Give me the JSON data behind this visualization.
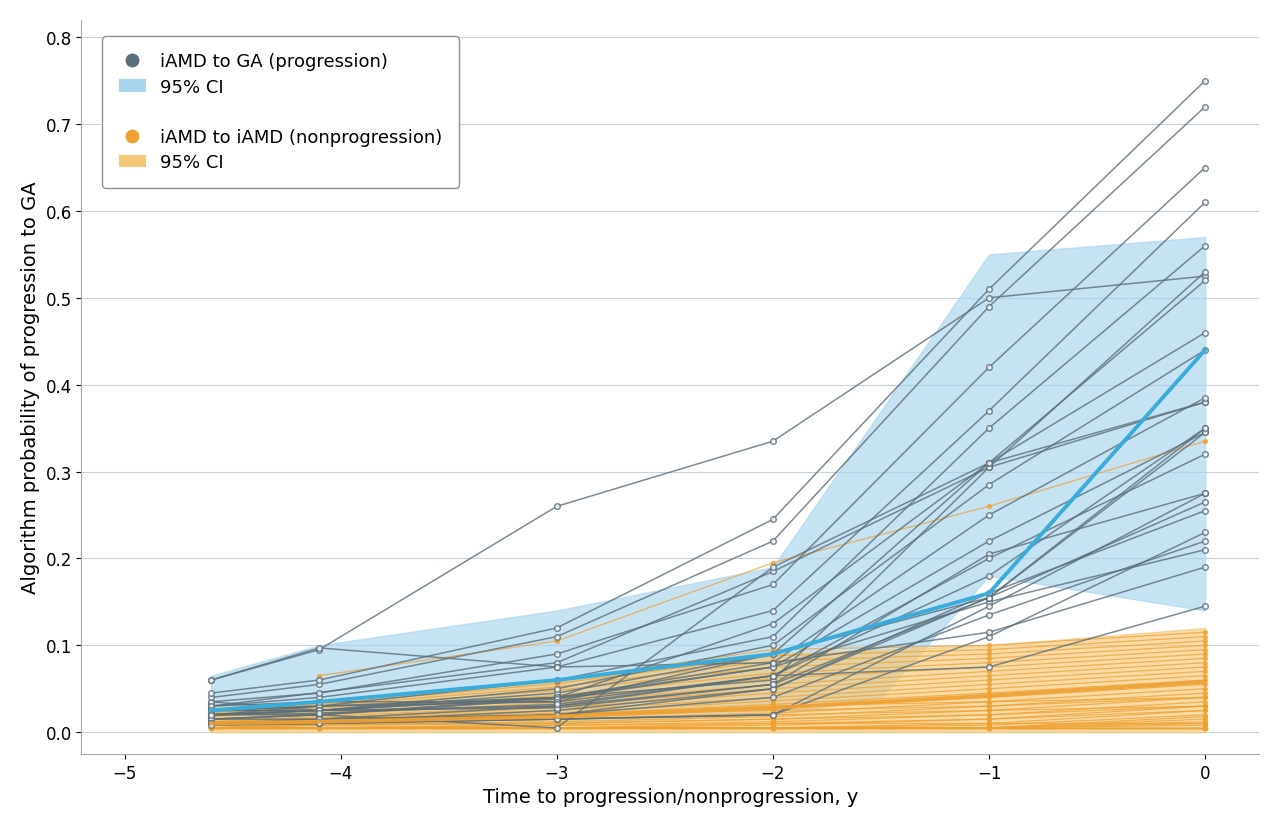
{
  "xlabel": "Time to progression/nonprogression, y",
  "ylabel": "Algorithm probability of progression to GA",
  "xlim": [
    -5.2,
    0.25
  ],
  "ylim": [
    -0.025,
    0.82
  ],
  "xticks": [
    -5,
    -4,
    -3,
    -2,
    -1,
    0
  ],
  "yticks": [
    0.0,
    0.1,
    0.2,
    0.3,
    0.4,
    0.5,
    0.6,
    0.7,
    0.8
  ],
  "progression_color": "#5A6E7A",
  "nonprogression_color": "#F0A030",
  "mean_progression_color": "#3AACDC",
  "ci_progression_color": "#A8D4EE",
  "ci_nonprogression_color": "#F5C878",
  "background_color": "#FFFFFF",
  "grid_color": "#C8D0D8",
  "progression_lines": [
    [
      -4.6,
      0.06,
      -4.1,
      0.095,
      -3.0,
      0.26,
      -2.0,
      0.335,
      -1.0,
      0.5,
      0,
      0.525
    ],
    [
      -4.6,
      0.02,
      -4.1,
      0.025,
      -3.0,
      0.04,
      -2.0,
      0.06,
      -1.0,
      0.305,
      0,
      0.53
    ],
    [
      -4.6,
      0.03,
      -3.0,
      0.08,
      -2.0,
      0.185,
      -1.0,
      0.305,
      0,
      0.38
    ],
    [
      -4.6,
      0.035,
      -4.1,
      0.025,
      -3.0,
      0.04,
      -2.0,
      0.075,
      -1.0,
      0.15,
      0,
      0.21
    ],
    [
      -4.6,
      0.01,
      -4.1,
      0.01,
      -3.0,
      0.015,
      -2.0,
      0.02,
      -1.0,
      0.11,
      0,
      0.23
    ],
    [
      -4.6,
      0.02,
      -4.1,
      0.03,
      -3.0,
      0.035,
      -2.0,
      0.09,
      -1.0,
      0.155,
      0,
      0.265
    ],
    [
      -4.6,
      0.02,
      -4.1,
      0.02,
      -3.0,
      0.005,
      -2.0,
      0.19,
      -1.0,
      0.31,
      0,
      0.38
    ],
    [
      -4.6,
      0.025,
      -4.1,
      0.03,
      -3.0,
      0.04,
      -2.0,
      0.125,
      -1.0,
      0.31,
      0,
      0.46
    ],
    [
      -4.6,
      0.015,
      -4.1,
      0.015,
      -3.0,
      0.02,
      -2.0,
      0.05,
      -1.0,
      0.155,
      0,
      0.35
    ],
    [
      -4.6,
      0.01,
      -4.1,
      0.01,
      -3.0,
      0.015,
      -2.0,
      0.02,
      -1.0,
      0.145,
      0,
      0.275
    ],
    [
      -4.6,
      0.025,
      -4.1,
      0.025,
      -3.0,
      0.03,
      -2.0,
      0.055,
      -1.0,
      0.205,
      0,
      0.275
    ],
    [
      -4.6,
      0.02,
      -4.1,
      0.025,
      -3.0,
      0.045,
      -2.0,
      0.09,
      -1.0,
      0.31,
      0,
      0.52
    ],
    [
      -4.6,
      0.025,
      -4.1,
      0.03,
      -3.0,
      0.06,
      -2.0,
      0.11,
      -1.0,
      0.35,
      0,
      0.56
    ],
    [
      -4.6,
      0.03,
      -4.1,
      0.04,
      -3.0,
      0.075,
      -2.0,
      0.14,
      -1.0,
      0.37,
      0,
      0.61
    ],
    [
      -4.6,
      0.035,
      -4.1,
      0.045,
      -3.0,
      0.09,
      -2.0,
      0.17,
      -1.0,
      0.42,
      0,
      0.65
    ],
    [
      -4.6,
      0.04,
      -4.1,
      0.055,
      -3.0,
      0.11,
      -2.0,
      0.22,
      -1.0,
      0.49,
      0,
      0.72
    ],
    [
      -4.6,
      0.045,
      -4.1,
      0.06,
      -3.0,
      0.12,
      -2.0,
      0.245,
      -1.0,
      0.51,
      0,
      0.75
    ],
    [
      -4.6,
      0.015,
      -4.1,
      0.02,
      -3.0,
      0.04,
      -2.0,
      0.08,
      -1.0,
      0.25,
      0,
      0.385
    ],
    [
      -4.6,
      0.02,
      -4.1,
      0.025,
      -3.0,
      0.05,
      -2.0,
      0.1,
      -1.0,
      0.285,
      0,
      0.44
    ],
    [
      -4.6,
      0.015,
      -4.1,
      0.02,
      -3.0,
      0.038,
      -2.0,
      0.075,
      -1.0,
      0.22,
      0,
      0.345
    ],
    [
      -4.6,
      0.01,
      -4.1,
      0.015,
      -3.0,
      0.03,
      -2.0,
      0.065,
      -1.0,
      0.2,
      0,
      0.32
    ],
    [
      -4.6,
      0.01,
      -4.1,
      0.012,
      -3.0,
      0.025,
      -2.0,
      0.05,
      -1.0,
      0.16,
      0,
      0.255
    ],
    [
      -4.6,
      0.008,
      -4.1,
      0.01,
      -3.0,
      0.02,
      -2.0,
      0.04,
      -1.0,
      0.135,
      0,
      0.22
    ],
    [
      -4.6,
      0.06,
      -4.1,
      0.097,
      -3.0,
      0.075,
      -2.0,
      0.08,
      -1.0,
      0.115,
      0,
      0.19
    ],
    [
      -4.6,
      0.03,
      -4.1,
      0.035,
      -3.0,
      0.035,
      -2.0,
      0.065,
      -1.0,
      0.075,
      0,
      0.145
    ],
    [
      -4.6,
      0.025,
      -4.1,
      0.025,
      -3.0,
      0.028,
      -2.0,
      0.055,
      -1.0,
      0.155,
      0,
      0.345
    ],
    [
      -4.6,
      0.02,
      -4.1,
      0.022,
      -3.0,
      0.032,
      -2.0,
      0.065,
      -1.0,
      0.18,
      0,
      0.35
    ]
  ],
  "nonprogression_lines": [
    [
      -4.6,
      0.005,
      -4.1,
      0.005,
      -3.0,
      0.005,
      -2.0,
      0.005,
      -1.0,
      0.005,
      0,
      0.005
    ],
    [
      -4.6,
      0.005,
      -4.1,
      0.005,
      -3.0,
      0.005,
      -2.0,
      0.005,
      -1.0,
      0.005,
      0,
      0.005
    ],
    [
      -4.6,
      0.005,
      -4.1,
      0.005,
      -3.0,
      0.005,
      -2.0,
      0.005,
      -1.0,
      0.005,
      0,
      0.005
    ],
    [
      -4.6,
      0.005,
      -4.1,
      0.005,
      -3.0,
      0.005,
      -2.0,
      0.005,
      -1.0,
      0.005,
      0,
      0.005
    ],
    [
      -4.6,
      0.005,
      -4.1,
      0.005,
      -3.0,
      0.005,
      -2.0,
      0.005,
      -1.0,
      0.005,
      0,
      0.005
    ],
    [
      -4.6,
      0.005,
      -4.1,
      0.005,
      -3.0,
      0.005,
      -2.0,
      0.005,
      -1.0,
      0.005,
      0,
      0.008
    ],
    [
      -4.6,
      0.005,
      -4.1,
      0.005,
      -3.0,
      0.005,
      -2.0,
      0.005,
      -1.0,
      0.005,
      0,
      0.01
    ],
    [
      -4.6,
      0.005,
      -4.1,
      0.005,
      -3.0,
      0.005,
      -2.0,
      0.005,
      -1.0,
      0.005,
      0,
      0.012
    ],
    [
      -4.6,
      0.005,
      -4.1,
      0.005,
      -3.0,
      0.005,
      -2.0,
      0.005,
      -1.0,
      0.005,
      0,
      0.015
    ],
    [
      -4.6,
      0.005,
      -4.1,
      0.005,
      -3.0,
      0.005,
      -2.0,
      0.005,
      -1.0,
      0.005,
      0,
      0.018
    ],
    [
      -4.6,
      0.005,
      -4.1,
      0.005,
      -3.0,
      0.005,
      -2.0,
      0.005,
      -1.0,
      0.008,
      0,
      0.02
    ],
    [
      -4.6,
      0.005,
      -4.1,
      0.005,
      -3.0,
      0.005,
      -2.0,
      0.005,
      -1.0,
      0.01,
      0,
      0.025
    ],
    [
      -4.6,
      0.005,
      -4.1,
      0.005,
      -3.0,
      0.005,
      -2.0,
      0.008,
      -1.0,
      0.015,
      0,
      0.03
    ],
    [
      -4.6,
      0.005,
      -4.1,
      0.005,
      -3.0,
      0.008,
      -2.0,
      0.012,
      -1.0,
      0.02,
      0,
      0.035
    ],
    [
      -4.6,
      0.005,
      -4.1,
      0.008,
      -3.0,
      0.01,
      -2.0,
      0.015,
      -1.0,
      0.025,
      0,
      0.04
    ],
    [
      -4.6,
      0.005,
      -4.1,
      0.008,
      -3.0,
      0.012,
      -2.0,
      0.018,
      -1.0,
      0.03,
      0,
      0.045
    ],
    [
      -4.6,
      0.008,
      -4.1,
      0.01,
      -3.0,
      0.015,
      -2.0,
      0.022,
      -1.0,
      0.035,
      0,
      0.05
    ],
    [
      -4.6,
      0.008,
      -4.1,
      0.012,
      -3.0,
      0.018,
      -2.0,
      0.028,
      -1.0,
      0.04,
      0,
      0.055
    ],
    [
      -4.6,
      0.01,
      -4.1,
      0.013,
      -3.0,
      0.02,
      -2.0,
      0.032,
      -1.0,
      0.045,
      0,
      0.06
    ],
    [
      -4.6,
      0.01,
      -4.1,
      0.014,
      -3.0,
      0.022,
      -2.0,
      0.036,
      -1.0,
      0.05,
      0,
      0.065
    ],
    [
      -4.6,
      0.01,
      -4.1,
      0.015,
      -3.0,
      0.025,
      -2.0,
      0.04,
      -1.0,
      0.055,
      0,
      0.07
    ],
    [
      -4.6,
      0.012,
      -4.1,
      0.016,
      -3.0,
      0.028,
      -2.0,
      0.045,
      -1.0,
      0.06,
      0,
      0.075
    ],
    [
      -4.6,
      0.012,
      -4.1,
      0.018,
      -3.0,
      0.03,
      -2.0,
      0.05,
      -1.0,
      0.065,
      0,
      0.08
    ],
    [
      -4.6,
      0.015,
      -4.1,
      0.02,
      -3.0,
      0.034,
      -2.0,
      0.055,
      -1.0,
      0.07,
      0,
      0.085
    ],
    [
      -4.6,
      0.015,
      -4.1,
      0.022,
      -3.0,
      0.038,
      -2.0,
      0.062,
      -1.0,
      0.075,
      0,
      0.09
    ],
    [
      -4.6,
      0.018,
      -4.1,
      0.025,
      -3.0,
      0.042,
      -2.0,
      0.068,
      -1.0,
      0.08,
      0,
      0.095
    ],
    [
      -4.6,
      0.02,
      -4.1,
      0.028,
      -3.0,
      0.048,
      -2.0,
      0.075,
      -1.0,
      0.085,
      0,
      0.1
    ],
    [
      -4.6,
      0.02,
      -4.1,
      0.03,
      -3.0,
      0.052,
      -2.0,
      0.082,
      -1.0,
      0.09,
      0,
      0.105
    ],
    [
      -4.6,
      0.022,
      -4.1,
      0.032,
      -3.0,
      0.056,
      -2.0,
      0.088,
      -1.0,
      0.095,
      0,
      0.11
    ],
    [
      -4.6,
      0.025,
      -4.1,
      0.035,
      -3.0,
      0.06,
      -2.0,
      0.095,
      -1.0,
      0.1,
      0,
      0.115
    ],
    [
      -4.6,
      0.01,
      -4.1,
      0.015,
      -3.0,
      0.02,
      -2.0,
      0.03,
      -1.0,
      0.035,
      0,
      0.04
    ],
    [
      -4.6,
      0.008,
      -4.1,
      0.01,
      -3.0,
      0.015,
      -2.0,
      0.02,
      -1.0,
      0.025,
      0,
      0.03
    ],
    [
      -4.1,
      0.065,
      -3.0,
      0.105,
      -2.0,
      0.195,
      -1.0,
      0.26,
      0,
      0.335
    ],
    [
      -4.1,
      0.015,
      -3.0,
      0.02,
      -2.0,
      0.025,
      -1.0,
      0.03,
      0,
      0.04
    ],
    [
      -3.0,
      0.005,
      -2.0,
      0.01,
      -1.0,
      0.01,
      0,
      0.01
    ],
    [
      -4.6,
      0.005,
      -4.1,
      0.005,
      -3.0,
      0.005,
      -2.0,
      0.005,
      -1.0,
      0.005,
      0,
      0.005
    ],
    [
      -4.6,
      0.005,
      -4.1,
      0.005,
      -3.0,
      0.005,
      -2.0,
      0.005,
      -1.0,
      0.005,
      0,
      0.005
    ],
    [
      -4.6,
      0.005,
      -4.1,
      0.005,
      -3.0,
      0.005,
      -2.0,
      0.005,
      -1.0,
      0.005,
      0,
      0.005
    ],
    [
      -4.6,
      0.005,
      -4.1,
      0.01,
      -3.0,
      0.01,
      -2.0,
      0.015,
      -1.0,
      0.02,
      0,
      0.03
    ],
    [
      -4.6,
      0.005,
      -4.1,
      0.005,
      -3.0,
      0.008,
      -2.0,
      0.01,
      -1.0,
      0.015,
      0,
      0.025
    ]
  ],
  "ci_prog_x": [
    -4.6,
    -4.1,
    -3.0,
    -2.0,
    -1.5,
    -1.0,
    0.0
  ],
  "ci_prog_lower": [
    0.005,
    0.005,
    0.01,
    0.02,
    0.04,
    0.18,
    0.14
  ],
  "ci_prog_upper": [
    0.065,
    0.1,
    0.14,
    0.19,
    0.37,
    0.55,
    0.57
  ],
  "ci_nonprog_x": [
    -4.6,
    -4.1,
    -3.0,
    -2.0,
    -1.0,
    0.0
  ],
  "ci_nonprog_lower": [
    0.0,
    0.0,
    0.0,
    0.0,
    0.0,
    0.0
  ],
  "ci_nonprog_upper": [
    0.028,
    0.035,
    0.058,
    0.09,
    0.1,
    0.12
  ],
  "mean_prog_x": [
    -4.6,
    -4.1,
    -3.0,
    -2.0,
    -1.0,
    0.0
  ],
  "mean_prog_y": [
    0.025,
    0.035,
    0.06,
    0.09,
    0.16,
    0.44
  ],
  "mean_nonprog_x": [
    -4.6,
    -4.1,
    -3.0,
    -2.0,
    -1.0,
    0.0
  ],
  "mean_nonprog_y": [
    0.01,
    0.012,
    0.018,
    0.028,
    0.042,
    0.058
  ],
  "legend_fontsize": 13,
  "axis_fontsize": 14,
  "tick_fontsize": 12
}
